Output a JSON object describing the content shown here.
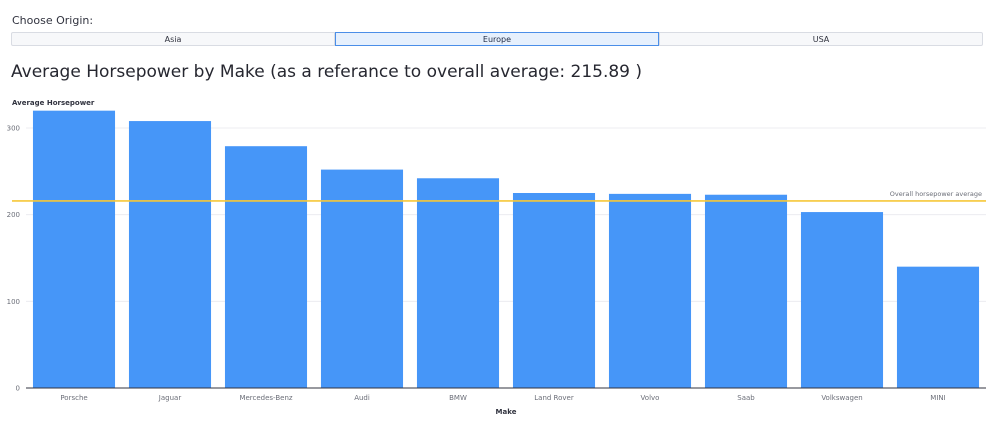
{
  "controls": {
    "origin_label": "Choose Origin:",
    "options": [
      "Asia",
      "Europe",
      "USA"
    ],
    "selected": "Europe"
  },
  "chart_title": "Average Horsepower by Make (as a referance to overall average: 215.89 )",
  "colors": {
    "bar": "#4696f8",
    "reference": "#f6c738",
    "active_border": "#4a8ee8"
  },
  "chart_data": {
    "type": "bar",
    "categories": [
      "Porsche",
      "Jaguar",
      "Mercedes-Benz",
      "Audi",
      "BMW",
      "Land Rover",
      "Volvo",
      "Saab",
      "Volkswagen",
      "MINI"
    ],
    "values": [
      320,
      308,
      279,
      252,
      242,
      225,
      224,
      223,
      203,
      140
    ],
    "xlabel": "Make",
    "ylabel": "Average Horsepower",
    "ylim": [
      0,
      320
    ],
    "yticks": [
      0,
      100,
      200,
      300
    ],
    "grid": true,
    "reference_line": {
      "value": 215.89,
      "label": "Overall horsepower average"
    }
  }
}
